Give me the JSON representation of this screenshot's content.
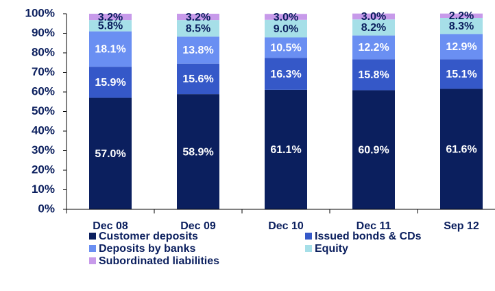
{
  "chart_data": {
    "type": "stacked_bar",
    "categories": [
      "Dec 08",
      "Dec 09",
      "Dec 10",
      "Dec 11",
      "Sep 12"
    ],
    "ylim": [
      0,
      100
    ],
    "yticks": [
      {
        "value": 0,
        "label": "0%"
      },
      {
        "value": 10,
        "label": "10%"
      },
      {
        "value": 20,
        "label": "20%"
      },
      {
        "value": 30,
        "label": "30%"
      },
      {
        "value": 40,
        "label": "40%"
      },
      {
        "value": 50,
        "label": "50%"
      },
      {
        "value": 60,
        "label": "60%"
      },
      {
        "value": 70,
        "label": "70%"
      },
      {
        "value": 80,
        "label": "80%"
      },
      {
        "value": 90,
        "label": "90%"
      },
      {
        "value": 100,
        "label": "100%"
      }
    ],
    "legend": "bottom",
    "series": [
      {
        "name": "Customer deposits",
        "color": "#0b1f5e",
        "label_color": "#ffffff",
        "values": [
          57.0,
          58.9,
          61.1,
          60.9,
          61.6
        ],
        "value_labels": [
          "57.0%",
          "58.9%",
          "61.1%",
          "60.9%",
          "61.6%"
        ]
      },
      {
        "name": "Issued bonds & CDs",
        "color": "#3558c8",
        "label_color": "#ffffff",
        "values": [
          15.9,
          15.6,
          16.3,
          15.8,
          15.1
        ],
        "value_labels": [
          "15.9%",
          "15.6%",
          "16.3%",
          "15.8%",
          "15.1%"
        ]
      },
      {
        "name": "Deposits by banks",
        "color": "#6a8ff2",
        "label_color": "#ffffff",
        "values": [
          18.1,
          13.8,
          10.5,
          12.2,
          12.9
        ],
        "value_labels": [
          "18.1%",
          "13.8%",
          "10.5%",
          "12.2%",
          "12.9%"
        ]
      },
      {
        "name": "Equity",
        "color": "#a6dfe8",
        "label_color": "#0b1f5e",
        "values": [
          5.8,
          8.5,
          9.0,
          8.2,
          8.3
        ],
        "value_labels": [
          "5.8%",
          "8.5%",
          "9.0%",
          "8.2%",
          "8.3%"
        ]
      },
      {
        "name": "Subordinated liabilities",
        "color": "#c79aea",
        "label_color": "#0b1f5e",
        "values": [
          3.2,
          3.2,
          3.0,
          3.0,
          2.2
        ],
        "value_labels": [
          "3.2%",
          "3.2%",
          "3.0%",
          "3.0%",
          "2.2%"
        ]
      }
    ]
  }
}
